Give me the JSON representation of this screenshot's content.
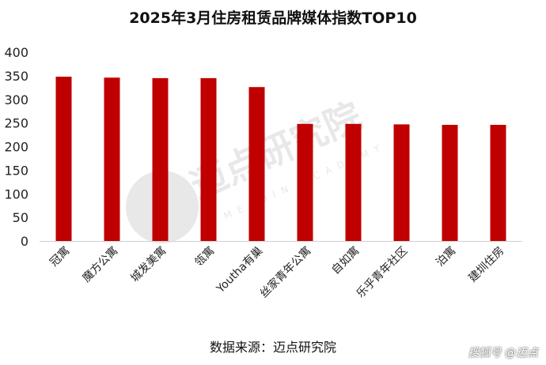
{
  "chart_data": {
    "type": "bar",
    "title": "2025年3月住房租赁品牌媒体指数TOP10",
    "categories": [
      "冠寓",
      "魔方公寓",
      "城发美寓",
      "瓴寓",
      "Youtha有巢",
      "丝家青年公寓",
      "自如寓",
      "乐乎青年社区",
      "泊寓",
      "建圳住房"
    ],
    "values": [
      348,
      346,
      345,
      345,
      326,
      248,
      248,
      247,
      246,
      246
    ],
    "ylim": [
      0,
      400
    ],
    "yticks": [
      0,
      50,
      100,
      150,
      200,
      250,
      300,
      350,
      400
    ],
    "xlabel": "",
    "ylabel": "",
    "bar_color": "#C00000",
    "grid": false,
    "legend": "none"
  },
  "source": "数据来源：迈点研究院",
  "watermark": {
    "text": "迈点研究院",
    "subtext": "MEADIN ACADEMY"
  },
  "footer": "搜狐号 @迈点"
}
